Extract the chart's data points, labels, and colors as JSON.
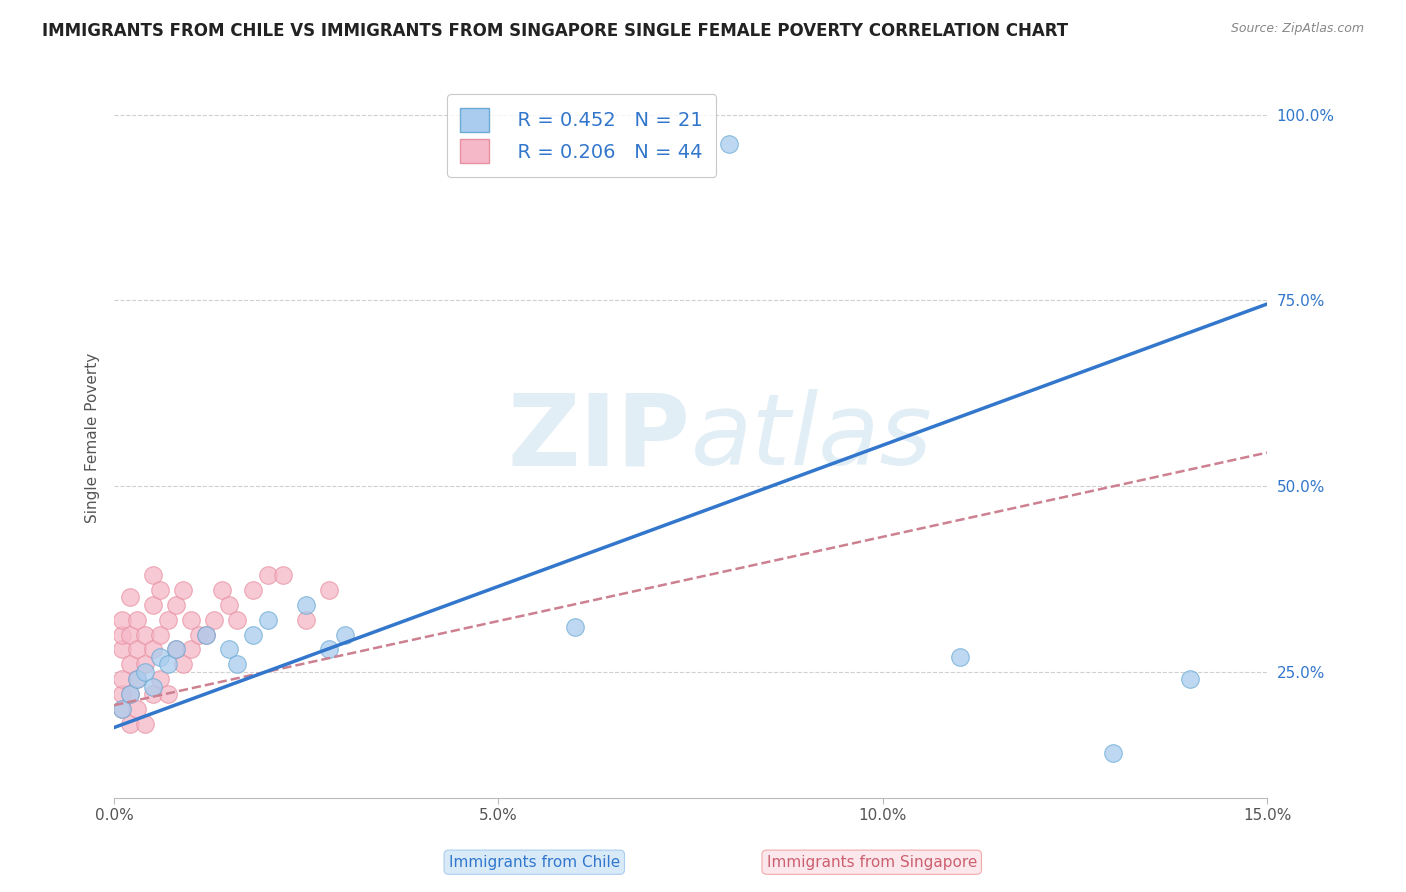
{
  "title": "IMMIGRANTS FROM CHILE VS IMMIGRANTS FROM SINGAPORE SINGLE FEMALE POVERTY CORRELATION CHART",
  "source": "Source: ZipAtlas.com",
  "xlabel_bottom": [
    "Immigrants from Chile",
    "Immigrants from Singapore"
  ],
  "ylabel": "Single Female Poverty",
  "xlim": [
    0.0,
    0.15
  ],
  "ylim": [
    0.08,
    1.05
  ],
  "yticks": [
    0.25,
    0.5,
    0.75,
    1.0
  ],
  "ytick_labels": [
    "25.0%",
    "50.0%",
    "75.0%",
    "100.0%"
  ],
  "xticks": [
    0.0,
    0.05,
    0.1,
    0.15
  ],
  "xtick_labels": [
    "0.0%",
    "5.0%",
    "10.0%",
    "15.0%"
  ],
  "grid_color": "#d0d0d0",
  "background_color": "#ffffff",
  "watermark": "ZIPatlas",
  "chile_color": "#6aaad4",
  "chile_color_fill": "#aaccee",
  "singapore_color": "#e890a0",
  "singapore_color_fill": "#f5b8c8",
  "chile_R": 0.452,
  "chile_N": 21,
  "singapore_R": 0.206,
  "singapore_N": 44,
  "chile_scatter_x": [
    0.001,
    0.002,
    0.003,
    0.004,
    0.005,
    0.006,
    0.007,
    0.008,
    0.012,
    0.015,
    0.016,
    0.018,
    0.02,
    0.025,
    0.028,
    0.03,
    0.06,
    0.08,
    0.11,
    0.13,
    0.14
  ],
  "chile_scatter_y": [
    0.2,
    0.22,
    0.24,
    0.25,
    0.23,
    0.27,
    0.26,
    0.28,
    0.3,
    0.28,
    0.26,
    0.3,
    0.32,
    0.34,
    0.28,
    0.3,
    0.31,
    0.96,
    0.27,
    0.14,
    0.24
  ],
  "singapore_scatter_x": [
    0.001,
    0.001,
    0.001,
    0.001,
    0.001,
    0.001,
    0.002,
    0.002,
    0.002,
    0.002,
    0.002,
    0.003,
    0.003,
    0.003,
    0.003,
    0.004,
    0.004,
    0.004,
    0.005,
    0.005,
    0.005,
    0.005,
    0.006,
    0.006,
    0.006,
    0.007,
    0.007,
    0.008,
    0.008,
    0.009,
    0.009,
    0.01,
    0.01,
    0.011,
    0.012,
    0.013,
    0.014,
    0.015,
    0.016,
    0.018,
    0.02,
    0.022,
    0.025,
    0.028
  ],
  "singapore_scatter_y": [
    0.22,
    0.24,
    0.28,
    0.3,
    0.32,
    0.2,
    0.18,
    0.22,
    0.26,
    0.3,
    0.35,
    0.2,
    0.24,
    0.28,
    0.32,
    0.18,
    0.26,
    0.3,
    0.22,
    0.28,
    0.34,
    0.38,
    0.24,
    0.3,
    0.36,
    0.22,
    0.32,
    0.28,
    0.34,
    0.26,
    0.36,
    0.28,
    0.32,
    0.3,
    0.3,
    0.32,
    0.36,
    0.34,
    0.32,
    0.36,
    0.38,
    0.38,
    0.32,
    0.36
  ],
  "chile_line_x": [
    0.0,
    0.15
  ],
  "chile_line_y": [
    0.175,
    0.745
  ],
  "singapore_line_x": [
    0.0,
    0.15
  ],
  "singapore_line_y": [
    0.205,
    0.545
  ],
  "legend_box_color": "#ffffff",
  "legend_border_color": "#bbbbbb",
  "title_fontsize": 12,
  "axis_label_fontsize": 11,
  "tick_fontsize": 11,
  "legend_fontsize": 14
}
